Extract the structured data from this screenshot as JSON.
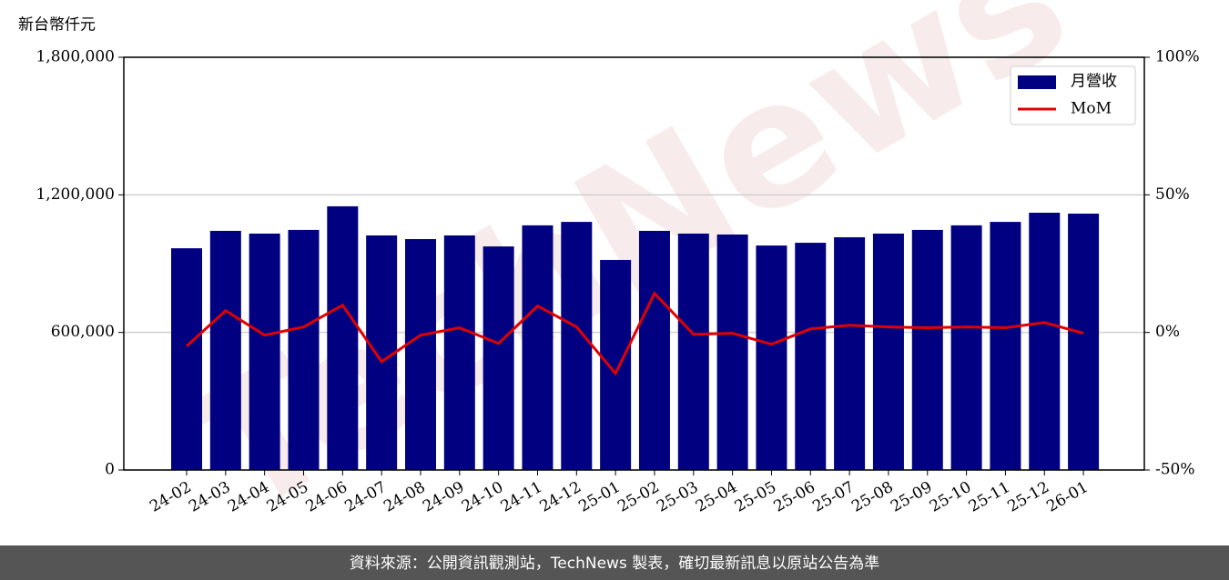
{
  "chart_data": {
    "type": "bar",
    "y_label": "新台幣仟元",
    "watermark": "TechNews",
    "footer": "資料來源：公開資訊觀測站，TechNews 製表，確切最新訊息以原站公告為準",
    "categories": [
      "24-02",
      "24-03",
      "24-04",
      "24-05",
      "24-06",
      "24-07",
      "24-08",
      "24-09",
      "24-10",
      "24-11",
      "24-12",
      "25-01",
      "25-02",
      "25-03",
      "25-04",
      "25-05",
      "25-06",
      "25-07",
      "25-08",
      "25-09",
      "25-10",
      "25-11",
      "25-12",
      "26-01"
    ],
    "series": [
      {
        "name": "月營收",
        "type": "bar",
        "color": "#000080",
        "values": [
          967000,
          1043000,
          1031000,
          1047000,
          1150000,
          1023000,
          1007000,
          1023000,
          975000,
          1067000,
          1082000,
          916000,
          1043000,
          1031000,
          1027000,
          979000,
          991000,
          1015000,
          1031000,
          1047000,
          1067000,
          1082000,
          1122000,
          1118000
        ]
      },
      {
        "name": "MoM",
        "type": "line",
        "axis": "y2",
        "color": "#e00000",
        "values": [
          -5.0,
          7.9,
          -1.0,
          2.0,
          9.9,
          -10.6,
          -1.0,
          1.7,
          -4.0,
          9.6,
          2.0,
          -14.9,
          14.2,
          -0.7,
          -0.3,
          -4.3,
          1.3,
          2.6,
          2.0,
          1.7,
          2.0,
          1.7,
          3.6,
          -0.3
        ]
      }
    ],
    "ylim": [
      0,
      1800000
    ],
    "yticks": [
      0,
      {
        "value": 600000,
        "label": "600,000"
      },
      {
        "value": 1200000,
        "label": "1,200,000"
      },
      {
        "value": 1800000,
        "label": "1,800,000"
      }
    ],
    "y2lim": [
      -50,
      100
    ],
    "y2ticks": [
      {
        "value": -50,
        "label": "-50%"
      },
      {
        "value": 0,
        "label": "0%"
      },
      {
        "value": 50,
        "label": "50%"
      },
      {
        "value": 100,
        "label": "100%"
      }
    ],
    "grid": true,
    "legend": "upper right"
  }
}
